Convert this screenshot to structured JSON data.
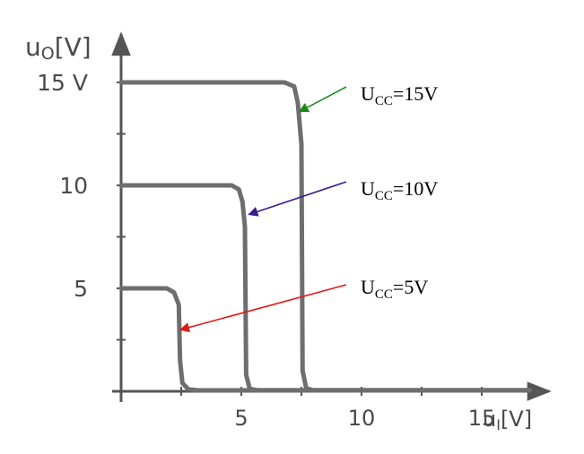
{
  "chart_data": {
    "type": "line",
    "title": "",
    "ylabel": "u",
    "ylabel_sub": "O",
    "ylabel_unit": "[V]",
    "xlabel": "u",
    "xlabel_sub": "I",
    "xlabel_unit": "[V]",
    "xlim": [
      0,
      17
    ],
    "ylim": [
      0,
      16.5
    ],
    "x_ticks": [
      {
        "value": 5,
        "label": "5"
      },
      {
        "value": 10,
        "label": "10"
      },
      {
        "value": 15,
        "label": "15"
      }
    ],
    "y_ticks": [
      {
        "value": 5,
        "label": "5"
      },
      {
        "value": 10,
        "label": "10"
      },
      {
        "value": 15,
        "label": "15 V"
      }
    ],
    "grid": false,
    "series": [
      {
        "name": "UCC=15V",
        "label_main": "U",
        "label_sub": "CC",
        "label_value": "=15V",
        "arrow_color": "#1a8a1a",
        "arrow_target": [
          7.45,
          13.6
        ],
        "x": [
          0,
          6.8,
          7.2,
          7.35,
          7.5,
          7.55,
          7.7,
          8.0,
          17
        ],
        "y": [
          15,
          15,
          14.8,
          14.0,
          12.0,
          1.0,
          0.15,
          0.05,
          0.05
        ]
      },
      {
        "name": "UCC=10V",
        "label_main": "U",
        "label_sub": "CC",
        "label_value": "=10V",
        "arrow_color": "#3d1a8a",
        "arrow_target": [
          5.35,
          8.6
        ],
        "x": [
          0,
          4.6,
          4.9,
          5.05,
          5.15,
          5.2,
          5.35,
          5.7,
          17
        ],
        "y": [
          10,
          10,
          9.8,
          9.2,
          8.0,
          0.8,
          0.12,
          0.05,
          0.05
        ]
      },
      {
        "name": "UCC=5V",
        "label_main": "U",
        "label_sub": "CC",
        "label_value": "=5V",
        "arrow_color": "#e01a1a",
        "arrow_target": [
          2.5,
          3.0
        ],
        "x": [
          0,
          1.9,
          2.2,
          2.4,
          2.45,
          2.55,
          2.8,
          3.2,
          17
        ],
        "y": [
          5,
          5,
          4.8,
          4.2,
          1.5,
          0.4,
          0.1,
          0.05,
          0.05
        ]
      }
    ]
  }
}
